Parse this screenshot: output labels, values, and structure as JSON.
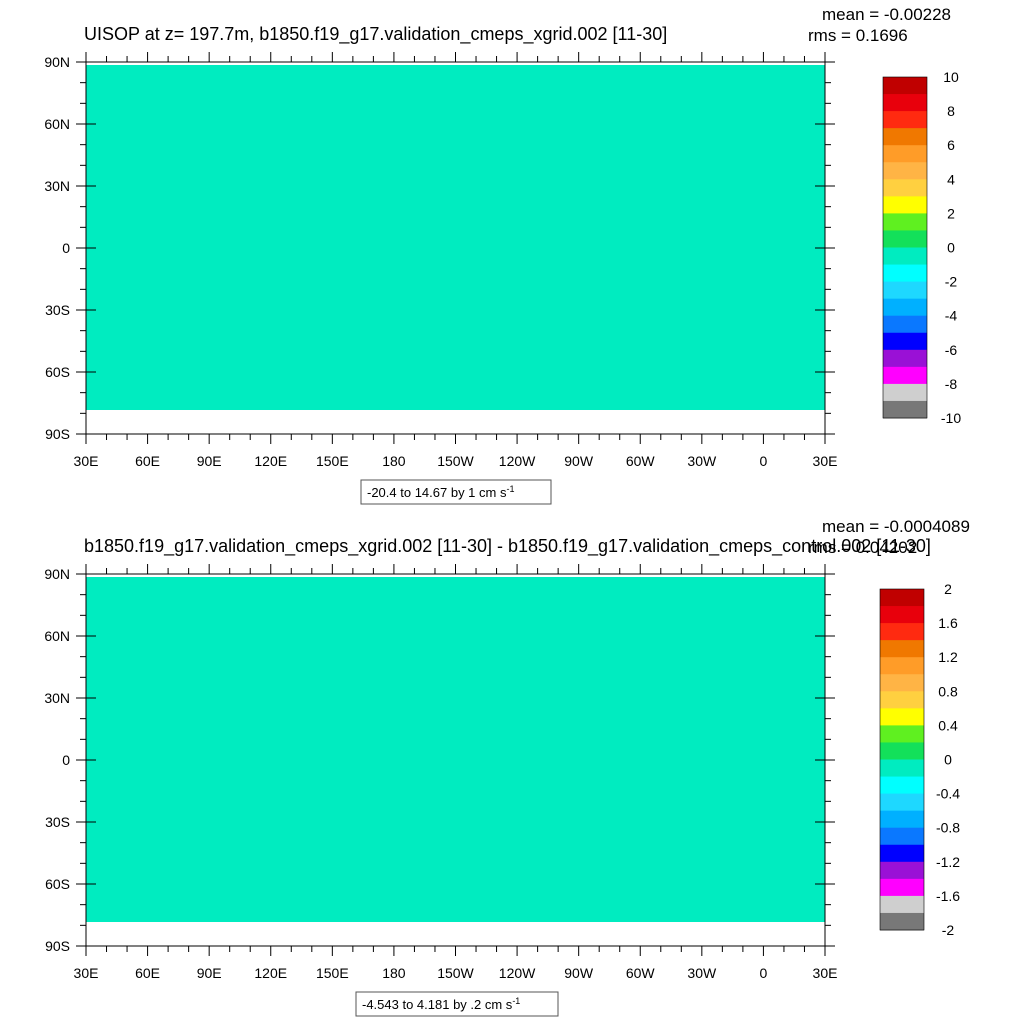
{
  "panels": [
    {
      "title": "UISOP at z= 197.7m, b1850.f19_g17.validation_cmeps_xgrid.002 [11-30]",
      "stats": {
        "mean": "mean = -0.00228",
        "rms": "rms = 0.1696"
      },
      "range_label": {
        "text": "-20.4 to 14.67 by 1 cm s",
        "sup": "-1"
      },
      "lat_ticks": [
        "90N",
        "60N",
        "30N",
        "0",
        "30S",
        "60S",
        "90S"
      ],
      "lon_ticks": [
        "30E",
        "60E",
        "90E",
        "120E",
        "150E",
        "180",
        "150W",
        "120W",
        "90W",
        "60W",
        "30W",
        "0",
        "30E"
      ],
      "colorbar": {
        "labels": [
          "10",
          "8",
          "6",
          "4",
          "2",
          "0",
          "-2",
          "-4",
          "-6",
          "-8",
          "-10"
        ],
        "colors": [
          "#c00000",
          "#e8000c",
          "#ff2a10",
          "#f07800",
          "#ff9c28",
          "#ffb445",
          "#ffd040",
          "#ffff00",
          "#5ff020",
          "#13e05a",
          "#00ecc0",
          "#00ffff",
          "#1ed8ff",
          "#00b0ff",
          "#0a78ff",
          "#0000ff",
          "#9a11d6",
          "#ff00ff",
          "#cfcfcf",
          "#787878"
        ]
      }
    },
    {
      "title": "b1850.f19_g17.validation_cmeps_xgrid.002 [11-30] - b1850.f19_g17.validation_cmeps_control.002 [11-30]",
      "stats": {
        "mean": "mean = -0.0004089",
        "rms": "rms = 0.04202"
      },
      "range_label": {
        "text": "-4.543 to 4.181 by .2 cm s",
        "sup": "-1"
      },
      "lat_ticks": [
        "90N",
        "60N",
        "30N",
        "0",
        "30S",
        "60S",
        "90S"
      ],
      "lon_ticks": [
        "30E",
        "60E",
        "90E",
        "120E",
        "150E",
        "180",
        "150W",
        "120W",
        "90W",
        "60W",
        "30W",
        "0",
        "30E"
      ],
      "colorbar": {
        "labels": [
          "2",
          "1.6",
          "1.2",
          "0.8",
          "0.4",
          "0",
          "-0.4",
          "-0.8",
          "-1.2",
          "-1.6",
          "-2"
        ],
        "colors": [
          "#c00000",
          "#e8000c",
          "#ff2a10",
          "#f07800",
          "#ff9c28",
          "#ffb445",
          "#ffd040",
          "#ffff00",
          "#5ff020",
          "#13e05a",
          "#00ecc0",
          "#00ffff",
          "#1ed8ff",
          "#00b0ff",
          "#0a78ff",
          "#0000ff",
          "#9a11d6",
          "#ff00ff",
          "#cfcfcf",
          "#787878"
        ]
      }
    }
  ],
  "map_colors": {
    "positive": "#13e05a",
    "negative": "#00ecc0",
    "missing": "#ffffff"
  },
  "chart_data": [
    {
      "type": "heatmap",
      "title": "UISOP at z= 197.7m, b1850.f19_g17.validation_cmeps_xgrid.002 [11-30]",
      "mean": -0.00228,
      "rms": 0.1696,
      "contour_min": -20.4,
      "contour_max": 14.67,
      "contour_interval": 1,
      "units": "cm s-1",
      "colorbar_range": [
        -10,
        10
      ],
      "x_domain": [
        "30E",
        "30E"
      ],
      "y_domain": [
        "90S",
        "90N"
      ],
      "grid": false
    },
    {
      "type": "heatmap",
      "title": "b1850.f19_g17.validation_cmeps_xgrid.002 [11-30] - b1850.f19_g17.validation_cmeps_control.002 [11-30]",
      "mean": -0.0004089,
      "rms": 0.04202,
      "contour_min": -4.543,
      "contour_max": 4.181,
      "contour_interval": 0.2,
      "units": "cm s-1",
      "colorbar_range": [
        -2,
        2
      ],
      "x_domain": [
        "30E",
        "30E"
      ],
      "y_domain": [
        "90S",
        "90N"
      ],
      "grid": false
    }
  ]
}
